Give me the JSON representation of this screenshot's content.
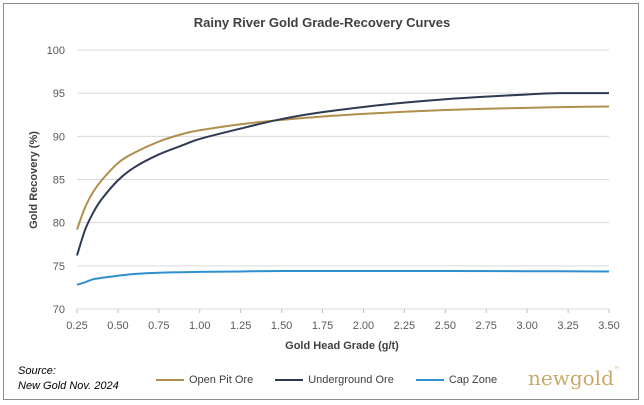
{
  "chart_data": {
    "type": "line",
    "title": "Rainy River Gold Grade-Recovery Curves",
    "xlabel": "Gold Head Grade (g/t)",
    "ylabel": "Gold Recovery (%)",
    "xlim": [
      0.25,
      3.5
    ],
    "ylim": [
      70,
      100
    ],
    "x_ticks": [
      "0.25",
      "0.50",
      "0.75",
      "1.00",
      "1.25",
      "1.50",
      "1.75",
      "2.00",
      "2.25",
      "2.50",
      "2.75",
      "3.00",
      "3.25",
      "3.50"
    ],
    "y_ticks": [
      "70",
      "75",
      "80",
      "85",
      "90",
      "95",
      "100"
    ],
    "grid": "horizontal",
    "legend_position": "bottom",
    "series": [
      {
        "name": "Open Pit Ore",
        "color": "#b08f4c",
        "x": [
          0.25,
          0.3,
          0.35,
          0.4,
          0.5,
          0.6,
          0.75,
          0.9,
          1.0,
          1.25,
          1.5,
          1.75,
          2.0,
          2.25,
          2.5,
          2.75,
          3.0,
          3.25,
          3.5
        ],
        "y": [
          79.2,
          81.8,
          83.6,
          84.9,
          86.9,
          88.1,
          89.4,
          90.3,
          90.7,
          91.4,
          91.9,
          92.3,
          92.6,
          92.85,
          93.05,
          93.2,
          93.3,
          93.4,
          93.45
        ]
      },
      {
        "name": "Underground Ore",
        "color": "#2e3a52",
        "x": [
          0.25,
          0.3,
          0.35,
          0.4,
          0.5,
          0.6,
          0.75,
          0.9,
          1.0,
          1.25,
          1.5,
          1.75,
          2.0,
          2.25,
          2.5,
          2.75,
          3.0,
          3.2,
          3.5
        ],
        "y": [
          76.2,
          79.2,
          81.2,
          82.7,
          84.9,
          86.4,
          87.9,
          89.0,
          89.7,
          90.9,
          92.0,
          92.8,
          93.4,
          93.9,
          94.3,
          94.6,
          94.85,
          95.0,
          95.0
        ]
      },
      {
        "name": "Cap Zone",
        "color": "#2e8fd0",
        "x": [
          0.25,
          0.3,
          0.35,
          0.4,
          0.5,
          0.6,
          0.75,
          1.0,
          1.25,
          1.5,
          2.0,
          2.5,
          3.0,
          3.5
        ],
        "y": [
          72.8,
          73.1,
          73.45,
          73.6,
          73.85,
          74.05,
          74.2,
          74.3,
          74.35,
          74.4,
          74.4,
          74.4,
          74.38,
          74.35
        ]
      }
    ]
  },
  "source": {
    "line1": "Source:",
    "line2": "New Gold Nov. 2024"
  },
  "logo": {
    "text": "newgold",
    "tm": "™"
  }
}
